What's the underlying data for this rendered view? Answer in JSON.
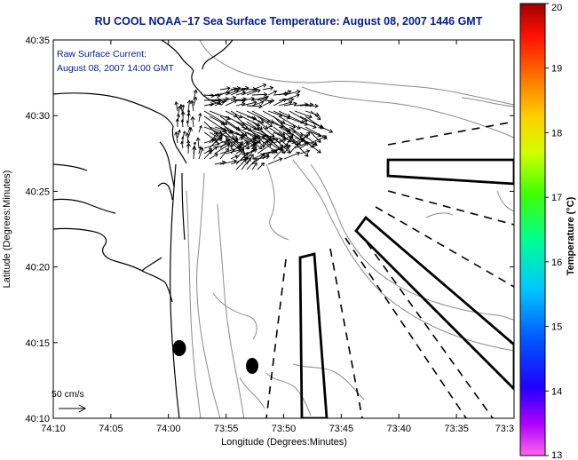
{
  "title": "RU COOL  NOAA–17  Sea Surface Temperature:  August 08, 2007 1446 GMT",
  "annotation": {
    "line1": "Raw Surface Current:",
    "line2": "August 08, 2007 14:00 GMT",
    "scale_label": "50 cm/s"
  },
  "axes": {
    "xlabel": "Longitude (Degrees:Minutes)",
    "ylabel": "Latitude (Degrees:Minutes)",
    "x_ticks": [
      "74:10",
      "74:05",
      "74:00",
      "73:55",
      "73:50",
      "73:45",
      "73:40",
      "73:35",
      "73:3"
    ],
    "y_ticks": [
      "40:35",
      "40:30",
      "40:25",
      "40:20",
      "40:15",
      "40:10"
    ]
  },
  "colorbar": {
    "label": "Temperature (°C)",
    "ticks": [
      "20",
      "19",
      "18",
      "17",
      "16",
      "15",
      "14",
      "13"
    ],
    "min": 13,
    "max": 20
  },
  "colors": {
    "title": "#001a99",
    "annotation": "#001a99",
    "coastline": "#000000",
    "bathymetry": "#8a8a8a",
    "current_vectors": "#000000"
  }
}
